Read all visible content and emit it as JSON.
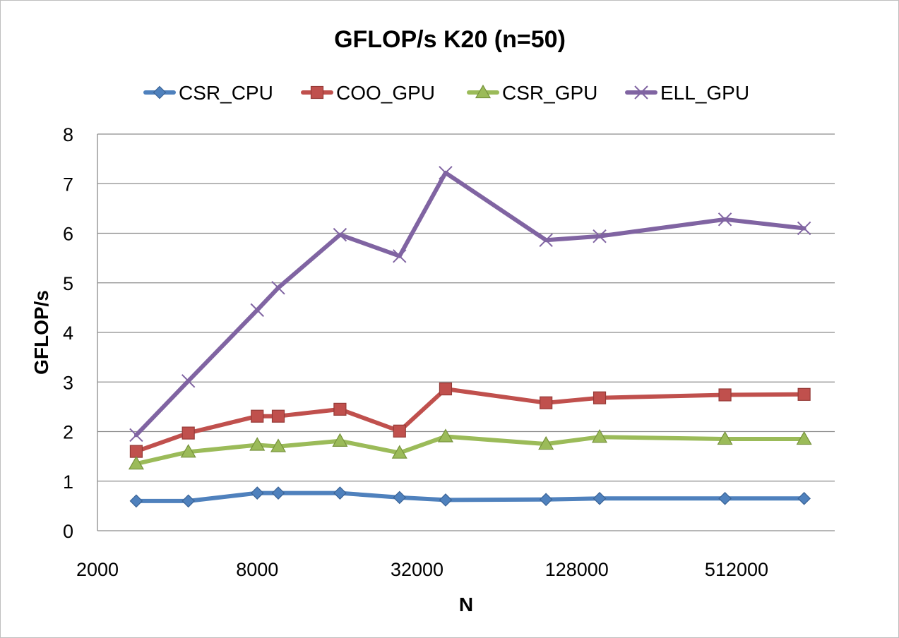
{
  "chart_data": {
    "type": "line",
    "title": "GFLOP/s K20 (n=50)",
    "xlabel": "N",
    "ylabel": "GFLOP/s",
    "x_scale": "log2",
    "xlim": [
      2000,
      1200000
    ],
    "ylim": [
      0,
      8
    ],
    "y_ticks": [
      0,
      1,
      2,
      3,
      4,
      5,
      6,
      7,
      8
    ],
    "x_ticks": [
      2000,
      8000,
      32000,
      128000,
      512000
    ],
    "x_tick_labels": [
      "2000",
      "8000",
      "32000",
      "128000",
      "512000"
    ],
    "grid": true,
    "legend_position": "top",
    "x": [
      2800,
      4400,
      8000,
      9600,
      16400,
      27500,
      41000,
      98000,
      156000,
      463000,
      920000
    ],
    "series": [
      {
        "name": "CSR_CPU",
        "color": "#4f81bd",
        "marker": "diamond",
        "values": [
          0.6,
          0.6,
          0.76,
          0.76,
          0.76,
          0.67,
          0.62,
          0.63,
          0.65,
          0.65,
          0.65
        ]
      },
      {
        "name": "COO_GPU",
        "color": "#c0504d",
        "marker": "square",
        "values": [
          1.6,
          1.97,
          2.31,
          2.31,
          2.45,
          2.01,
          2.86,
          2.58,
          2.68,
          2.74,
          2.75
        ]
      },
      {
        "name": "CSR_GPU",
        "color": "#9bbb59",
        "marker": "triangle",
        "values": [
          1.35,
          1.59,
          1.73,
          1.7,
          1.81,
          1.57,
          1.9,
          1.75,
          1.89,
          1.85,
          1.85
        ]
      },
      {
        "name": "ELL_GPU",
        "color": "#8064a2",
        "marker": "x",
        "values": [
          1.93,
          3.02,
          4.45,
          4.9,
          5.97,
          5.54,
          7.22,
          5.86,
          5.94,
          6.28,
          6.1
        ]
      }
    ]
  }
}
